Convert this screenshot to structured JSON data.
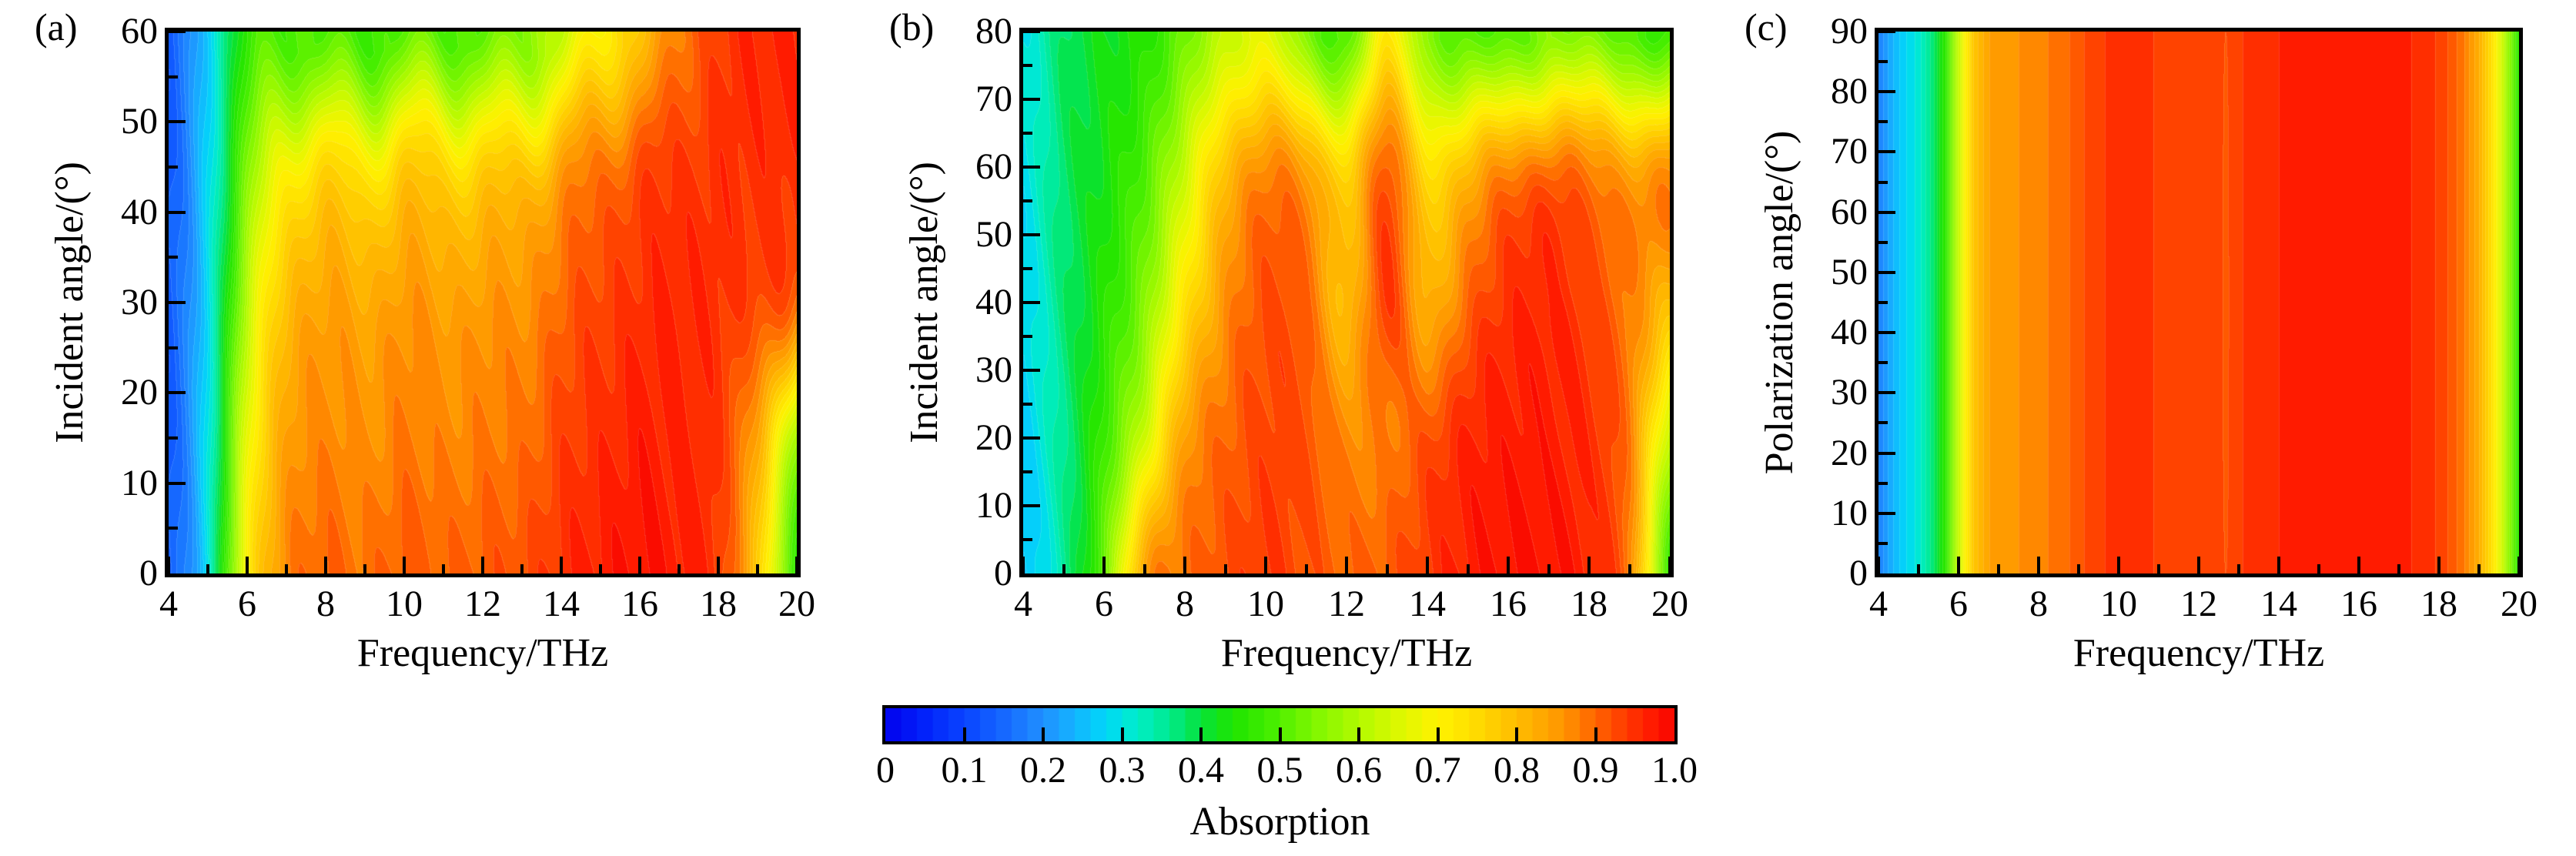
{
  "chart_data": {
    "type": "heatmap",
    "description": "Filled-contour absorption maps of a terahertz absorber: (a) absorption vs frequency and incident angle (TE-like, 0-60 deg), (b) absorption vs frequency and incident angle (0-80 deg), (c) absorption vs frequency and polarization angle (0-90 deg). Shared rainbow colorbar 0-1.",
    "colormap_stops": [
      [
        0.0,
        "#0202ee"
      ],
      [
        0.05,
        "#0222fa"
      ],
      [
        0.1,
        "#0a44ff"
      ],
      [
        0.15,
        "#1668ff"
      ],
      [
        0.2,
        "#2090ff"
      ],
      [
        0.24,
        "#14b4ff"
      ],
      [
        0.28,
        "#00d8f8"
      ],
      [
        0.32,
        "#00eec8"
      ],
      [
        0.36,
        "#00ea8e"
      ],
      [
        0.4,
        "#06e23a"
      ],
      [
        0.44,
        "#1ee400"
      ],
      [
        0.49,
        "#46ee00"
      ],
      [
        0.54,
        "#7cf600"
      ],
      [
        0.6,
        "#b2fa00"
      ],
      [
        0.65,
        "#dcf800"
      ],
      [
        0.7,
        "#fff200"
      ],
      [
        0.74,
        "#ffe000"
      ],
      [
        0.78,
        "#ffc800"
      ],
      [
        0.82,
        "#ffb000"
      ],
      [
        0.86,
        "#ff9400"
      ],
      [
        0.89,
        "#ff7000"
      ],
      [
        0.92,
        "#ff4e00"
      ],
      [
        0.95,
        "#ff2e00"
      ],
      [
        0.98,
        "#ff1200"
      ],
      [
        1.0,
        "#f50600"
      ]
    ],
    "levels": 50,
    "colorbar": {
      "title": "Absorption",
      "range": [
        0,
        1
      ],
      "tick_values": [
        0,
        0.1,
        0.2,
        0.3,
        0.4,
        0.5,
        0.6,
        0.7,
        0.8,
        0.9,
        1.0
      ],
      "tick_labels": [
        "0",
        "0.1",
        "0.2",
        "0.3",
        "0.4",
        "0.5",
        "0.6",
        "0.7",
        "0.8",
        "0.9",
        "1.0"
      ]
    },
    "panels": [
      {
        "tag": "(a)",
        "x_label": "Frequency/THz",
        "y_label": "Incident angle/(°)",
        "x_range": [
          4,
          20
        ],
        "y_range": [
          0,
          60
        ],
        "x_major_ticks": [
          4,
          6,
          8,
          10,
          12,
          14,
          16,
          18,
          20
        ],
        "x_minor_ticks": [
          5,
          7,
          9,
          11,
          13,
          15,
          17,
          19
        ],
        "y_major_ticks": [
          0,
          10,
          20,
          30,
          40,
          50,
          60
        ],
        "y_minor_ticks": [
          5,
          15,
          25,
          35,
          45,
          55
        ],
        "x_tick_labels": [
          "4",
          "6",
          "8",
          "10",
          "12",
          "14",
          "16",
          "18",
          "20"
        ],
        "y_tick_labels": [
          "0",
          "10",
          "20",
          "30",
          "40",
          "50",
          "60"
        ],
        "grid_type": "grid",
        "row_angles": [
          0,
          15,
          30,
          45,
          60
        ],
        "col_freqs": [
          4,
          5,
          6,
          7,
          8,
          9,
          10,
          11,
          12,
          13,
          14,
          15,
          16,
          17,
          18,
          19,
          20
        ],
        "values": [
          [
            0.13,
            0.3,
            0.7,
            0.87,
            0.9,
            0.89,
            0.91,
            0.9,
            0.91,
            0.92,
            0.95,
            0.97,
            0.98,
            0.97,
            0.94,
            0.78,
            0.47
          ],
          [
            0.13,
            0.3,
            0.66,
            0.84,
            0.87,
            0.86,
            0.88,
            0.87,
            0.88,
            0.89,
            0.93,
            0.95,
            0.97,
            0.96,
            0.94,
            0.83,
            0.58
          ],
          [
            0.13,
            0.29,
            0.6,
            0.8,
            0.84,
            0.83,
            0.85,
            0.84,
            0.85,
            0.86,
            0.9,
            0.93,
            0.95,
            0.96,
            0.95,
            0.93,
            0.9
          ],
          [
            0.13,
            0.28,
            0.53,
            0.7,
            0.75,
            0.73,
            0.76,
            0.75,
            0.76,
            0.79,
            0.84,
            0.88,
            0.92,
            0.94,
            0.95,
            0.95,
            0.95
          ],
          [
            0.13,
            0.27,
            0.46,
            0.49,
            0.5,
            0.48,
            0.5,
            0.49,
            0.51,
            0.55,
            0.62,
            0.7,
            0.79,
            0.88,
            0.94,
            0.96,
            0.96
          ]
        ],
        "ripple": {
          "amp": 2.2,
          "period": 2.05,
          "phase": 4.0,
          "amp2": 0.8,
          "period2": 4.7,
          "phase2": 2.0
        }
      },
      {
        "tag": "(b)",
        "x_label": "Frequency/THz",
        "y_label": "Incident angle/(°)",
        "x_range": [
          4,
          20
        ],
        "y_range": [
          0,
          80
        ],
        "x_major_ticks": [
          4,
          6,
          8,
          10,
          12,
          14,
          16,
          18,
          20
        ],
        "x_minor_ticks": [
          5,
          7,
          9,
          11,
          13,
          15,
          17,
          19
        ],
        "y_major_ticks": [
          0,
          10,
          20,
          30,
          40,
          50,
          60,
          70,
          80
        ],
        "y_minor_ticks": [
          5,
          15,
          25,
          35,
          45,
          55,
          65,
          75
        ],
        "x_tick_labels": [
          "4",
          "6",
          "8",
          "10",
          "12",
          "14",
          "16",
          "18",
          "20"
        ],
        "y_tick_labels": [
          "0",
          "10",
          "20",
          "30",
          "40",
          "50",
          "60",
          "70",
          "80"
        ],
        "grid_type": "grid",
        "row_angles": [
          0,
          20,
          40,
          60,
          80
        ],
        "col_freqs": [
          4,
          5,
          6,
          7,
          8,
          9,
          10,
          11,
          12,
          13,
          14,
          15,
          16,
          17,
          18,
          19,
          20
        ],
        "values": [
          [
            0.25,
            0.35,
            0.52,
            0.84,
            0.89,
            0.92,
            0.94,
            0.92,
            0.9,
            0.91,
            0.94,
            0.97,
            0.98,
            0.98,
            0.96,
            0.88,
            0.48
          ],
          [
            0.27,
            0.36,
            0.48,
            0.64,
            0.84,
            0.9,
            0.93,
            0.92,
            0.87,
            0.88,
            0.92,
            0.96,
            0.97,
            0.97,
            0.95,
            0.88,
            0.62
          ],
          [
            0.28,
            0.37,
            0.45,
            0.55,
            0.72,
            0.86,
            0.92,
            0.9,
            0.8,
            0.94,
            0.82,
            0.9,
            0.95,
            0.96,
            0.93,
            0.88,
            0.8
          ],
          [
            0.29,
            0.38,
            0.43,
            0.5,
            0.62,
            0.8,
            0.87,
            0.84,
            0.76,
            0.9,
            0.75,
            0.8,
            0.87,
            0.9,
            0.86,
            0.84,
            0.86
          ],
          [
            0.3,
            0.38,
            0.42,
            0.45,
            0.52,
            0.62,
            0.66,
            0.54,
            0.5,
            0.7,
            0.55,
            0.5,
            0.5,
            0.55,
            0.52,
            0.5,
            0.47
          ]
        ],
        "ripple": {
          "amp": 1.3,
          "period": 2.5,
          "phase": 1.0,
          "amp2": 0.6,
          "period2": 5.3,
          "phase2": 0.4
        }
      },
      {
        "tag": "(c)",
        "x_label": "Frequency/THz",
        "y_label": "Polarization angle/(°)",
        "x_range": [
          4,
          20
        ],
        "y_range": [
          0,
          90
        ],
        "x_major_ticks": [
          4,
          6,
          8,
          10,
          12,
          14,
          16,
          18,
          20
        ],
        "x_minor_ticks": [
          5,
          7,
          9,
          11,
          13,
          15,
          17,
          19
        ],
        "y_major_ticks": [
          0,
          10,
          20,
          30,
          40,
          50,
          60,
          70,
          80,
          90
        ],
        "y_minor_ticks": [
          5,
          15,
          25,
          35,
          45,
          55,
          65,
          75,
          85
        ],
        "x_tick_labels": [
          "4",
          "6",
          "8",
          "10",
          "12",
          "14",
          "16",
          "18",
          "20"
        ],
        "y_tick_labels": [
          "0",
          "10",
          "20",
          "30",
          "40",
          "50",
          "60",
          "70",
          "80",
          "90"
        ],
        "grid_type": "profile",
        "profile_freqs": [
          4,
          4.3,
          4.6,
          5.0,
          5.35,
          5.7,
          5.95,
          6.15,
          6.4,
          6.8,
          7.5,
          8.1,
          8.5,
          8.9,
          9.3,
          10.0,
          10.7,
          11.2,
          12.0,
          12.6,
          13.1,
          13.7,
          14.3,
          15.0,
          16.0,
          17.0,
          17.6,
          18.1,
          18.6,
          19.0,
          19.35,
          19.7,
          20.0
        ],
        "profile_values": [
          0.18,
          0.23,
          0.27,
          0.31,
          0.37,
          0.47,
          0.6,
          0.7,
          0.79,
          0.845,
          0.86,
          0.875,
          0.89,
          0.905,
          0.93,
          0.95,
          0.945,
          0.93,
          0.925,
          0.925,
          0.94,
          0.955,
          0.965,
          0.97,
          0.97,
          0.965,
          0.955,
          0.93,
          0.885,
          0.82,
          0.73,
          0.58,
          0.46
        ],
        "streak": {
          "freq": 12.68,
          "width": 0.075,
          "depth": 0.018
        }
      }
    ]
  }
}
